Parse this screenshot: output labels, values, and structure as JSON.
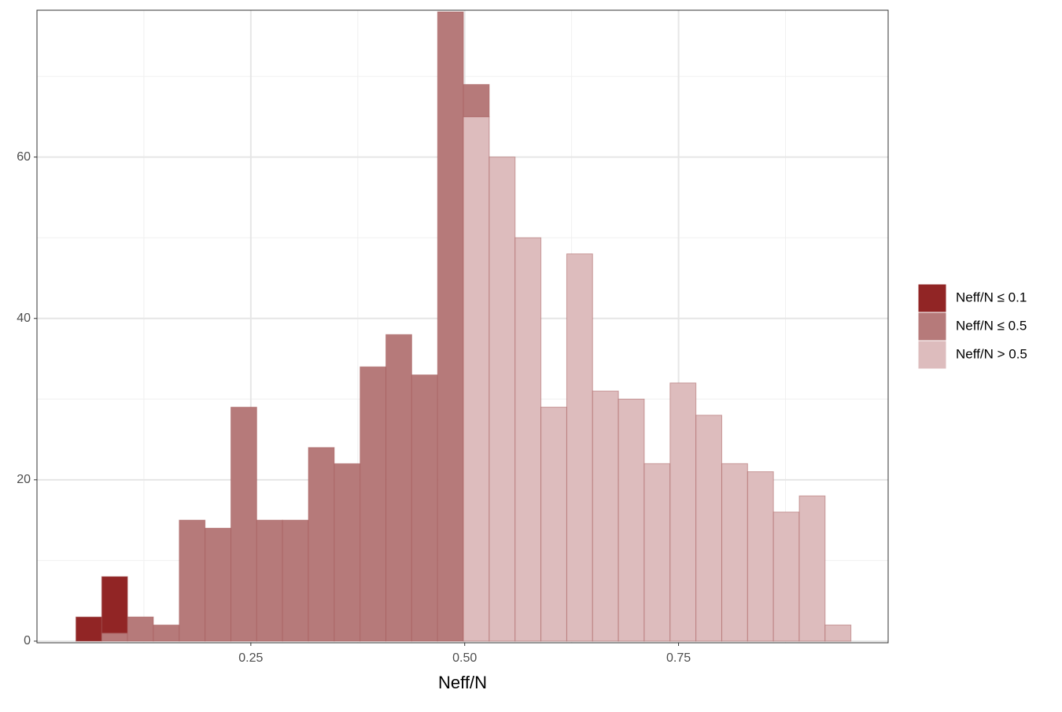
{
  "chart_data": {
    "type": "histogram",
    "x_label": "Neff/N",
    "bins": [
      0.0455,
      0.0757,
      0.1059,
      0.1361,
      0.1663,
      0.1965,
      0.2267,
      0.2569,
      0.2871,
      0.3173,
      0.3475,
      0.3777,
      0.4079,
      0.4381,
      0.4683,
      0.4985,
      0.5287,
      0.5589,
      0.5891,
      0.6193,
      0.6495,
      0.6797,
      0.7099,
      0.7401,
      0.7703,
      0.8005,
      0.8307,
      0.8609,
      0.8911,
      0.9213,
      0.9515
    ],
    "series": [
      {
        "name": "Neff/N ≤ 0.1",
        "color": "#912525",
        "values": [
          3,
          7,
          0,
          0,
          0,
          0,
          0,
          0,
          0,
          0,
          0,
          0,
          0,
          0,
          0,
          0,
          0,
          0,
          0,
          0,
          0,
          0,
          0,
          0,
          0,
          0,
          0,
          0,
          0,
          0
        ]
      },
      {
        "name": "Neff/N ≤ 0.5",
        "color": "#b67a7a",
        "values": [
          0,
          1,
          3,
          2,
          15,
          14,
          29,
          15,
          15,
          24,
          22,
          34,
          38,
          33,
          78,
          4,
          0,
          0,
          0,
          0,
          0,
          0,
          0,
          0,
          0,
          0,
          0,
          0,
          0,
          0
        ]
      },
      {
        "name": "Neff/N > 0.5",
        "color": "#ddbcbd",
        "values": [
          0,
          0,
          0,
          0,
          0,
          0,
          0,
          0,
          0,
          0,
          0,
          0,
          0,
          0,
          0,
          65,
          60,
          50,
          29,
          48,
          31,
          30,
          22,
          32,
          28,
          22,
          21,
          16,
          18,
          2
        ]
      }
    ],
    "xlim": [
      0.0,
      0.995
    ],
    "ylim": [
      -0.2,
      78.2
    ],
    "xticks": [
      {
        "value": 0.25,
        "label": "0.25"
      },
      {
        "value": 0.5,
        "label": "0.50"
      },
      {
        "value": 0.75,
        "label": "0.75"
      }
    ],
    "yticks": [
      0,
      20,
      40,
      60
    ],
    "grid": true,
    "legend_position": "right"
  }
}
